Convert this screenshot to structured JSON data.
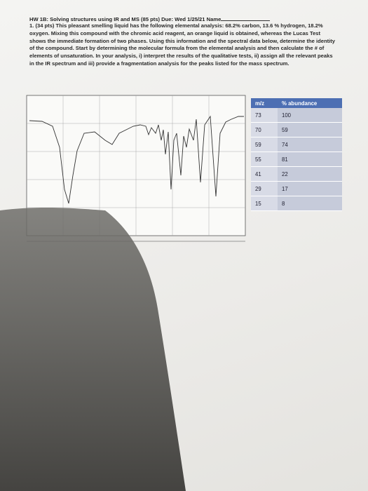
{
  "header": {
    "title": "HW 1B: Solving structures using IR and MS (85 pts)  Due: Wed 1/25/21 Name"
  },
  "question": {
    "text": "1. (34 pts) This pleasant smelling liquid has the following elemental analysis: 68.2% carbon, 13.6 % hydrogen, 18.2% oxygen. Mixing this compound with the chromic acid reagent, an orange liquid is obtained, whereas the Lucas Test shows the immediate formation of two phases. Using this information and the spectral data below, determine the identity of the compound. Start by determining the molecular formula from the elemental analysis and then calculate the # of elements of unsaturation. In your analysis, i) interpret the results of the qualitative tests, ii) assign all the relevant peaks in the IR spectrum and iii) provide a fragmentation analysis for the peaks listed for the mass spectrum."
  },
  "table": {
    "columns": [
      "m/z",
      "% abundance"
    ],
    "rows": [
      [
        73,
        100
      ],
      [
        70,
        59
      ],
      [
        59,
        74
      ],
      [
        55,
        81
      ],
      [
        41,
        22
      ],
      [
        29,
        17
      ],
      [
        15,
        8
      ]
    ]
  }
}
